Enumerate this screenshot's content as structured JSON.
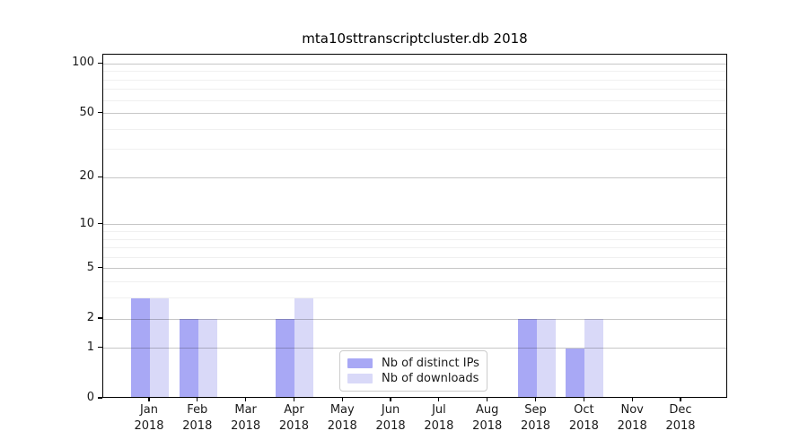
{
  "chart_data": {
    "type": "bar",
    "title": "mta10sttranscriptcluster.db 2018",
    "categories": [
      "Jan",
      "Feb",
      "Mar",
      "Apr",
      "May",
      "Jun",
      "Jul",
      "Aug",
      "Sep",
      "Oct",
      "Nov",
      "Dec"
    ],
    "year_label": "2018",
    "series": [
      {
        "name": "Nb of distinct IPs",
        "color": "#a8a8f5",
        "values": [
          3,
          2,
          0,
          2,
          0,
          0,
          0,
          0,
          2,
          1,
          0,
          0
        ]
      },
      {
        "name": "Nb of downloads",
        "color": "#d9d9f8",
        "values": [
          3,
          2,
          0,
          3,
          0,
          0,
          0,
          0,
          2,
          2,
          0,
          0
        ]
      }
    ],
    "yscale": "log1p",
    "yticks": [
      0,
      1,
      2,
      5,
      10,
      20,
      50,
      100
    ],
    "minor_yticks": [
      3,
      4,
      6,
      7,
      8,
      9,
      30,
      40,
      60,
      70,
      80,
      90
    ],
    "ylim": [
      0,
      113.5
    ],
    "xlabel": "",
    "ylabel": "",
    "grid": true,
    "legend_position": "lower center",
    "background": "#ffffff",
    "frame_color": "#000000"
  }
}
